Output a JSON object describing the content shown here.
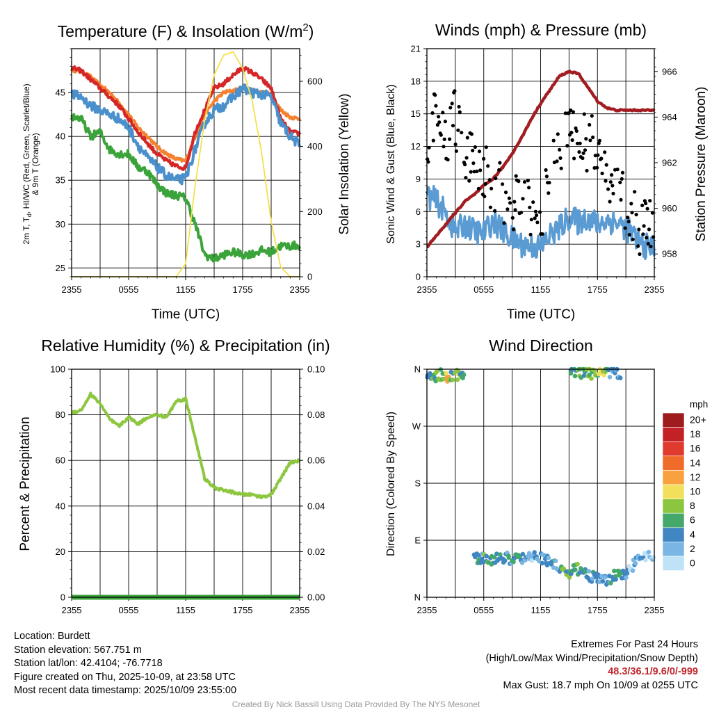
{
  "titles": {
    "temperature": "Temperature (F) & Insolation (W/m",
    "temperature_sup": "2",
    "temperature_end": ")",
    "winds": "Winds (mph) & Pressure (mb)",
    "rh": "Relative Humidity (%) & Precipitation (in)",
    "direction": "Wind Direction"
  },
  "axis_labels": {
    "time": "Time (UTC)",
    "temp_left_1": "2m T, T",
    "temp_left_sub": "d",
    "temp_left_2": ", HI/WC (Red, Green, Scarlet/Blue)",
    "temp_left_3": "& 9m T (Orange)",
    "temp_right": "Solar Insolation (Yellow)",
    "wind_left": "Sonic Wind & Gust (Blue, Black)",
    "wind_right": "Station Pressure (Maroon)",
    "rh_left": "Percent & Precipitation",
    "dir_left": "Direction (Colored By Speed)"
  },
  "x_ticks": [
    "2355",
    "0555",
    "1155",
    "1755",
    "2355"
  ],
  "legend": {
    "unit": "mph",
    "labels": [
      "20+",
      "18",
      "16",
      "14",
      "12",
      "10",
      "8",
      "6",
      "4",
      "2",
      "0"
    ],
    "colors": [
      "#9e1b1e",
      "#c42127",
      "#e03a2e",
      "#f06a2a",
      "#f9a13f",
      "#f2e05c",
      "#8cc63f",
      "#43a86a",
      "#3f86c2",
      "#7ab6e4",
      "#c0e2f7"
    ]
  },
  "colors": {
    "air_temp": "#d62728",
    "nine_m_temp": "#f58231",
    "dewpoint": "#3aa33a",
    "heat_index_windchill": "#4a90cc",
    "insolation": "#f5e14a",
    "sonic_wind": "#5a9bd4",
    "gust": "#000000",
    "pressure": "#a11d21",
    "rh": "#8dc63f",
    "precip": "#3aa33a"
  },
  "chart_data": [
    {
      "type": "line",
      "title": "Temperature (F) & Insolation (W/m2)",
      "xlabel": "Time (UTC)",
      "ylabel": "2m T, Td, HI/WC (Red, Green, Scarlet/Blue) & 9m T (Orange)",
      "y2label": "Solar Insolation (Yellow)",
      "x_hours": [
        0,
        1,
        2,
        3,
        4,
        5,
        6,
        7,
        8,
        9,
        10,
        11,
        12,
        13,
        14,
        15,
        16,
        17,
        18,
        19,
        20,
        21,
        22,
        23,
        24
      ],
      "xlim": [
        0,
        24
      ],
      "ylim": [
        24,
        50
      ],
      "y_ticks": [
        25,
        30,
        35,
        40,
        45
      ],
      "y2lim": [
        0,
        700
      ],
      "y2_ticks": [
        0,
        200,
        400,
        600
      ],
      "series": [
        {
          "name": "2m Air Temperature (Red)",
          "values": [
            47.8,
            47.5,
            46.5,
            45.5,
            44.5,
            43.5,
            42.0,
            40.5,
            39.2,
            38.0,
            37.2,
            36.6,
            36.4,
            40.5,
            43.0,
            45.5,
            46.0,
            47.0,
            47.8,
            47.3,
            46.5,
            45.5,
            42.0,
            40.5,
            40.3
          ]
        },
        {
          "name": "9m Temperature (Orange)",
          "values": [
            47.6,
            47.4,
            46.8,
            45.8,
            45.0,
            43.8,
            42.5,
            41.0,
            40.0,
            38.8,
            38.0,
            37.4,
            37.2,
            40.0,
            42.5,
            44.0,
            45.0,
            45.2,
            45.5,
            45.3,
            45.0,
            44.8,
            43.0,
            42.2,
            42.0
          ]
        },
        {
          "name": "Dewpoint (Green)",
          "values": [
            42.3,
            42.0,
            40.0,
            40.5,
            38.5,
            38.0,
            38.0,
            36.5,
            36.0,
            34.5,
            33.5,
            33.3,
            33.0,
            30.0,
            26.5,
            26.0,
            26.5,
            26.8,
            26.5,
            26.6,
            27.0,
            26.8,
            27.5,
            27.5,
            27.6
          ]
        },
        {
          "name": "Heat Index / Wind Chill (Blue)",
          "values": [
            44.8,
            44.5,
            43.5,
            43.0,
            42.5,
            42.0,
            41.0,
            39.0,
            37.5,
            36.5,
            35.5,
            35.0,
            35.2,
            38.5,
            41.5,
            43.0,
            43.5,
            44.5,
            45.5,
            45.0,
            44.8,
            44.5,
            41.5,
            40.0,
            39.0
          ]
        },
        {
          "name": "Solar Insolation (Yellow)",
          "axis": "y2",
          "values": [
            0,
            0,
            0,
            0,
            0,
            0,
            0,
            0,
            0,
            0,
            0,
            0,
            40,
            280,
            480,
            620,
            680,
            690,
            640,
            540,
            380,
            170,
            30,
            0,
            0
          ]
        }
      ]
    },
    {
      "type": "line",
      "title": "Winds (mph) & Pressure (mb)",
      "xlabel": "Time (UTC)",
      "ylabel": "Sonic Wind & Gust (Blue, Black)",
      "y2label": "Station Pressure (Maroon)",
      "x_hours": [
        0,
        1,
        2,
        3,
        4,
        5,
        6,
        7,
        8,
        9,
        10,
        11,
        12,
        13,
        14,
        15,
        16,
        17,
        18,
        19,
        20,
        21,
        22,
        23,
        24
      ],
      "xlim": [
        0,
        24
      ],
      "ylim": [
        0,
        21
      ],
      "y_ticks": [
        0,
        3,
        6,
        9,
        12,
        15,
        18,
        21
      ],
      "y2lim": [
        957,
        967
      ],
      "y2_ticks": [
        958,
        960,
        962,
        964,
        966
      ],
      "series": [
        {
          "name": "Sonic Wind (Blue)",
          "values": [
            7.5,
            7.0,
            5.8,
            4.2,
            4.8,
            4.2,
            4.0,
            5.2,
            4.2,
            3.5,
            3.0,
            2.8,
            2.7,
            3.8,
            4.5,
            5.5,
            5.0,
            5.5,
            4.8,
            5.2,
            5.0,
            4.5,
            3.5,
            2.8,
            2.7
          ]
        },
        {
          "name": "Gust (Black)",
          "values": [
            13.0,
            14.5,
            12.8,
            14.5,
            11.0,
            11.0,
            9.8,
            8.5,
            7.5,
            6.5,
            7.0,
            6.5,
            6.0,
            9.0,
            12.0,
            13.5,
            12.5,
            12.5,
            11.5,
            9.5,
            8.5,
            6.5,
            5.0,
            4.3,
            4.5
          ]
        },
        {
          "name": "Station Pressure (Maroon)",
          "axis": "y2",
          "values": [
            958.3,
            958.8,
            959.3,
            959.8,
            960.3,
            960.6,
            961.0,
            961.3,
            961.8,
            962.4,
            963.1,
            963.9,
            964.6,
            965.2,
            965.8,
            966.0,
            965.9,
            965.3,
            964.7,
            964.4,
            964.3,
            964.3,
            964.3,
            964.3,
            964.3
          ]
        }
      ]
    },
    {
      "type": "line",
      "title": "Relative Humidity (%) & Precipitation (in)",
      "ylabel": "Percent & Precipitation",
      "x_hours": [
        0,
        1,
        2,
        3,
        4,
        5,
        6,
        7,
        8,
        9,
        10,
        11,
        12,
        13,
        14,
        15,
        16,
        17,
        18,
        19,
        20,
        21,
        22,
        23,
        24
      ],
      "xlim": [
        0,
        24
      ],
      "ylim": [
        0,
        100
      ],
      "y_ticks": [
        0,
        20,
        40,
        60,
        80,
        100
      ],
      "y2lim": [
        0,
        0.1
      ],
      "y2_ticks": [
        "0.00",
        "0.02",
        "0.04",
        "0.06",
        "0.08",
        "0.10"
      ],
      "series": [
        {
          "name": "Relative Humidity",
          "values": [
            81,
            82,
            89,
            85,
            78,
            75,
            79,
            76,
            79,
            80,
            79,
            86,
            87,
            70,
            52,
            48,
            47,
            46,
            45,
            45,
            44,
            45,
            52,
            59,
            60
          ]
        },
        {
          "name": "Precipitation",
          "axis": "y2",
          "values": [
            0,
            0,
            0,
            0,
            0,
            0,
            0,
            0,
            0,
            0,
            0,
            0,
            0,
            0,
            0,
            0,
            0,
            0,
            0,
            0,
            0,
            0,
            0,
            0,
            0
          ]
        }
      ]
    },
    {
      "type": "scatter",
      "title": "Wind Direction",
      "ylabel": "Direction (Colored By Speed)",
      "xlim": [
        0,
        24
      ],
      "ylim": [
        0,
        360
      ],
      "y_ticks": [
        "N",
        "E",
        "S",
        "W",
        "N"
      ],
      "series": [
        {
          "name": "Direction cluster (N, early)",
          "x": [
            0,
            0.5,
            1,
            1.5,
            2,
            2.5,
            3,
            3.5,
            4
          ],
          "values": [
            355,
            350,
            348,
            352,
            346,
            350,
            353,
            349,
            358
          ],
          "speeds_mph": [
            5,
            6,
            8,
            7,
            10,
            6,
            8,
            5,
            4
          ]
        },
        {
          "name": "Direction cluster (N, afternoon)",
          "x": [
            15.2,
            16,
            16.5,
            17,
            19,
            19.5,
            20.5
          ],
          "values": [
            357,
            356,
            354,
            353,
            357,
            355,
            354
          ],
          "speeds_mph": [
            6,
            7,
            6,
            8,
            4,
            3,
            4
          ]
        },
        {
          "name": "Direction cluster (ENE-NE)",
          "x": [
            5,
            6,
            7,
            8,
            9,
            10,
            11,
            12,
            13,
            14,
            15,
            16,
            17,
            18,
            19,
            20,
            21,
            22,
            23,
            24
          ],
          "values": [
            60,
            62,
            58,
            64,
            60,
            63,
            65,
            62,
            55,
            45,
            40,
            45,
            35,
            30,
            25,
            35,
            40,
            55,
            65,
            63
          ],
          "speeds_mph": [
            4,
            6,
            5,
            4,
            5,
            3,
            2,
            3,
            4,
            6,
            6,
            5,
            4,
            3,
            4,
            5,
            2,
            2,
            1,
            2
          ]
        }
      ]
    }
  ],
  "info": {
    "location": "Location: Burdett",
    "elevation": "Station elevation: 567.751 m",
    "latlon": "Station lat/lon: 42.4104; -76.7718",
    "created": "Figure created on Thu, 2025-10-09, at 23:58 UTC",
    "recent": "Most recent data timestamp: 2025/10/09 23:55:00"
  },
  "extremes": {
    "title": "Extremes For Past 24 Hours",
    "subtitle": "(High/Low/Max Wind/Precipitation/Snow Depth)",
    "values": "48.3/36.1/9.6/0/-999",
    "gust": "Max Gust: 18.7 mph On 10/09 at 0255 UTC"
  },
  "credit": "Created By Nick Bassill Using Data Provided By The NYS Mesonet"
}
